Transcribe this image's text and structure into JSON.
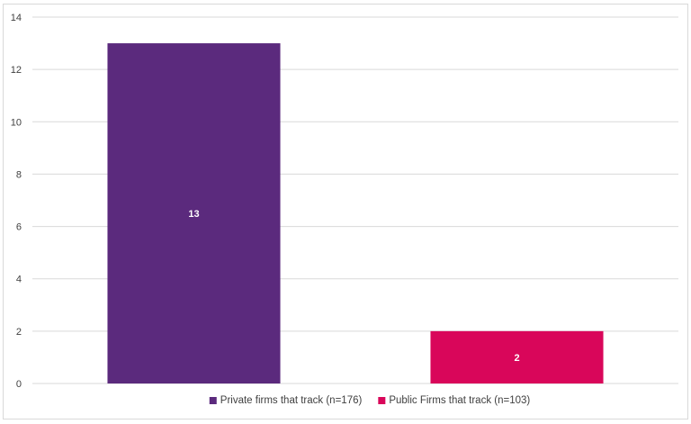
{
  "chart_data": {
    "type": "bar",
    "categories": [
      "Private firms that track (n=176)",
      "Public Firms that track (n=103)"
    ],
    "values": [
      13,
      2
    ],
    "colors": [
      "#5b2a7d",
      "#d9065a"
    ],
    "title": "",
    "xlabel": "",
    "ylabel": "",
    "ylim": [
      0,
      14
    ],
    "yticks": [
      0,
      2,
      4,
      6,
      8,
      10,
      12,
      14
    ],
    "grid": true,
    "legend_position": "bottom",
    "data_labels": [
      "13",
      "2"
    ]
  },
  "colors": {
    "grid": "#d9d9d9",
    "axis_text": "#404040",
    "border": "#d9d9d9"
  }
}
